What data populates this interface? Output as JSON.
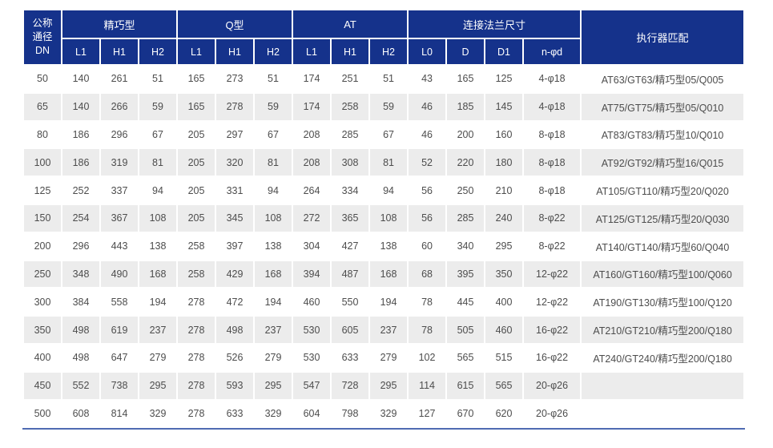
{
  "colors": {
    "header_bg": "#15328b",
    "header_text": "#ffffff",
    "alt_row_bg": "#ececec",
    "data_text": "#4d4d4d",
    "bottom_rule": "#4f6bb2"
  },
  "table": {
    "dn_header": "公称\n通径\nDN",
    "groups": [
      {
        "label": "精巧型",
        "cols": [
          "L1",
          "H1",
          "H2"
        ]
      },
      {
        "label": "Q型",
        "cols": [
          "L1",
          "H1",
          "H2"
        ]
      },
      {
        "label": "AT",
        "cols": [
          "L1",
          "H1",
          "H2"
        ]
      },
      {
        "label": "连接法兰尺寸",
        "cols": [
          "L0",
          "D",
          "D1",
          "n-φd"
        ]
      },
      {
        "label": "执行器匹配",
        "cols": []
      }
    ],
    "rows": [
      [
        50,
        140,
        261,
        51,
        165,
        273,
        51,
        174,
        251,
        51,
        43,
        165,
        125,
        "4-φ18",
        "AT63/GT63/精巧型05/Q005"
      ],
      [
        65,
        140,
        266,
        59,
        165,
        278,
        59,
        174,
        258,
        59,
        46,
        185,
        145,
        "4-φ18",
        "AT75/GT75/精巧型05/Q010"
      ],
      [
        80,
        186,
        296,
        67,
        205,
        297,
        67,
        208,
        285,
        67,
        46,
        200,
        160,
        "8-φ18",
        "AT83/GT83/精巧型10/Q010"
      ],
      [
        100,
        186,
        319,
        81,
        205,
        320,
        81,
        208,
        308,
        81,
        52,
        220,
        180,
        "8-φ18",
        "AT92/GT92/精巧型16/Q015"
      ],
      [
        125,
        252,
        337,
        94,
        205,
        331,
        94,
        264,
        334,
        94,
        56,
        250,
        210,
        "8-φ18",
        "AT105/GT110/精巧型20/Q020"
      ],
      [
        150,
        254,
        367,
        108,
        205,
        345,
        108,
        272,
        365,
        108,
        56,
        285,
        240,
        "8-φ22",
        "AT125/GT125/精巧型20/Q030"
      ],
      [
        200,
        296,
        443,
        138,
        258,
        397,
        138,
        304,
        427,
        138,
        60,
        340,
        295,
        "8-φ22",
        "AT140/GT140/精巧型60/Q040"
      ],
      [
        250,
        348,
        490,
        168,
        258,
        429,
        168,
        394,
        487,
        168,
        68,
        395,
        350,
        "12-φ22",
        "AT160/GT160/精巧型100/Q060"
      ],
      [
        300,
        384,
        558,
        194,
        278,
        472,
        194,
        460,
        550,
        194,
        78,
        445,
        400,
        "12-φ22",
        "AT190/GT130/精巧型100/Q120"
      ],
      [
        350,
        498,
        619,
        237,
        278,
        498,
        237,
        530,
        605,
        237,
        78,
        505,
        460,
        "16-φ22",
        "AT210/GT210/精巧型200/Q180"
      ],
      [
        400,
        498,
        647,
        279,
        278,
        526,
        279,
        530,
        633,
        279,
        102,
        565,
        515,
        "16-φ22",
        "AT240/GT240/精巧型200/Q180"
      ],
      [
        450,
        552,
        738,
        295,
        278,
        593,
        295,
        547,
        728,
        295,
        114,
        615,
        565,
        "20-φ26",
        ""
      ],
      [
        500,
        608,
        814,
        329,
        278,
        633,
        329,
        604,
        798,
        329,
        127,
        670,
        620,
        "20-φ26",
        ""
      ]
    ]
  }
}
